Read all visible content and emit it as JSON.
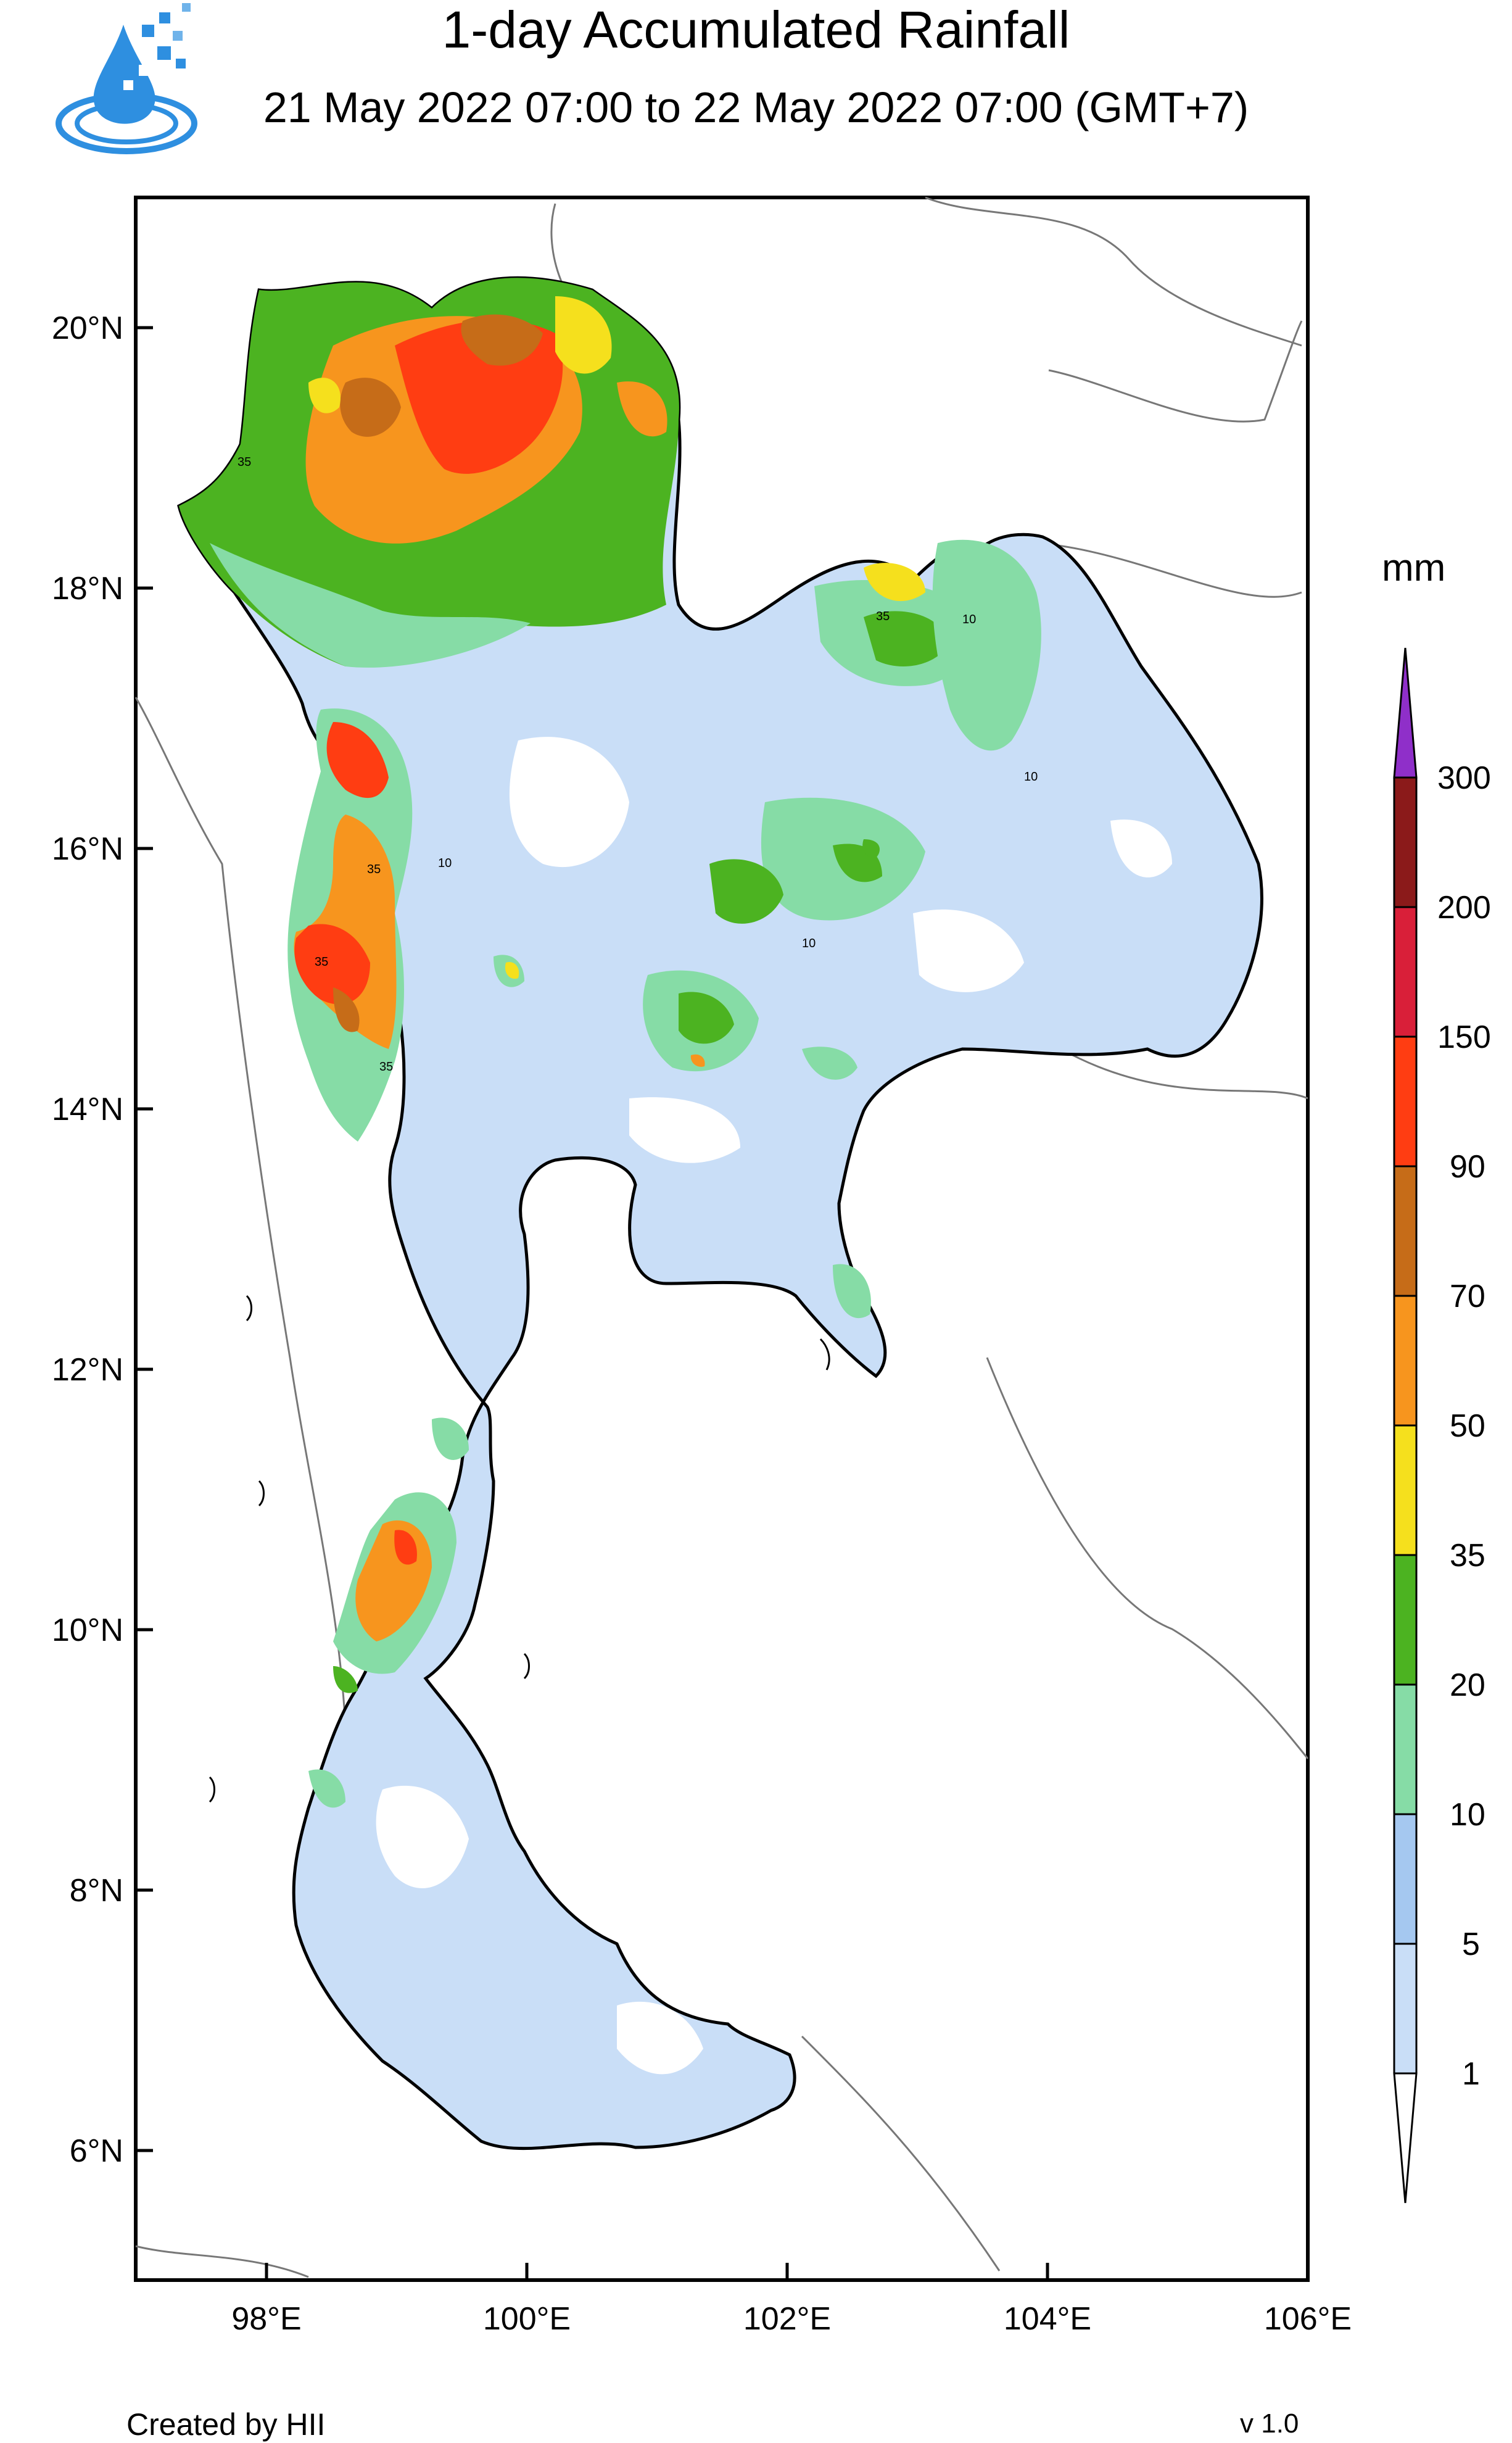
{
  "header": {
    "title": "1-day Accumulated Rainfall",
    "subtitle": "21 May 2022 07:00 to 22 May 2022 07:00 (GMT+7)"
  },
  "map": {
    "lat_ticks": [
      "20°N",
      "18°N",
      "16°N",
      "14°N",
      "12°N",
      "10°N",
      "8°N",
      "6°N"
    ],
    "lon_ticks": [
      "98°E",
      "100°E",
      "102°E",
      "104°E",
      "106°E"
    ],
    "extent": {
      "lon": [
        97,
        106
      ],
      "lat": [
        5,
        21
      ]
    },
    "contour_labels": [
      "35",
      "10",
      "35",
      "10",
      "35",
      "10",
      "35",
      "10",
      "35"
    ]
  },
  "legend": {
    "unit": "mm",
    "levels": [
      "1",
      "5",
      "10",
      "20",
      "35",
      "50",
      "70",
      "90",
      "150",
      "200",
      "300"
    ],
    "colors": [
      "#c9def7",
      "#a5c8f0",
      "#86dca6",
      "#4cb321",
      "#f5e01d",
      "#f7951e",
      "#c66c18",
      "#ff3d12",
      "#d91f39",
      "#8b1a1a",
      "#8f2fc9"
    ]
  },
  "footer": {
    "credit": "Created by HII",
    "version": "v 1.0"
  },
  "icons": {
    "logo": "water-drop-logo-icon"
  }
}
